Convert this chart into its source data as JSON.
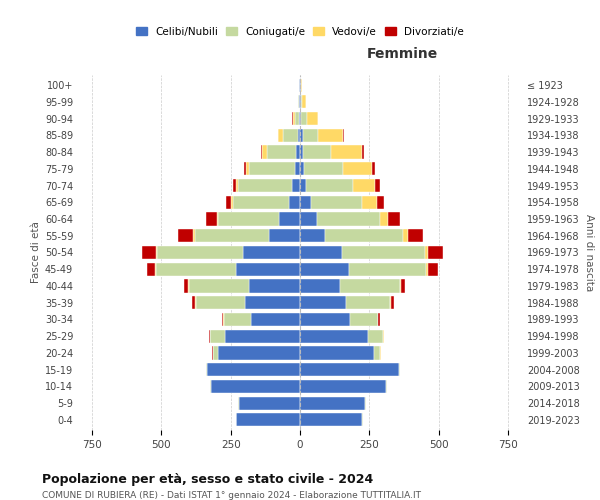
{
  "age_groups": [
    "0-4",
    "5-9",
    "10-14",
    "15-19",
    "20-24",
    "25-29",
    "30-34",
    "35-39",
    "40-44",
    "45-49",
    "50-54",
    "55-59",
    "60-64",
    "65-69",
    "70-74",
    "75-79",
    "80-84",
    "85-89",
    "90-94",
    "95-99",
    "100+"
  ],
  "birth_years": [
    "2019-2023",
    "2014-2018",
    "2009-2013",
    "2004-2008",
    "1999-2003",
    "1994-1998",
    "1989-1993",
    "1984-1988",
    "1979-1983",
    "1974-1978",
    "1969-1973",
    "1964-1968",
    "1959-1963",
    "1954-1958",
    "1949-1953",
    "1944-1948",
    "1939-1943",
    "1934-1938",
    "1929-1933",
    "1924-1928",
    "≤ 1923"
  ],
  "male": {
    "celibi": [
      230,
      220,
      320,
      335,
      295,
      270,
      175,
      200,
      185,
      230,
      205,
      110,
      75,
      38,
      28,
      18,
      14,
      8,
      4,
      2,
      2
    ],
    "coniugati": [
      2,
      2,
      3,
      5,
      18,
      55,
      100,
      175,
      215,
      290,
      310,
      270,
      220,
      205,
      195,
      165,
      105,
      55,
      15,
      4,
      2
    ],
    "vedovi": [
      0,
      0,
      0,
      0,
      2,
      1,
      1,
      2,
      2,
      3,
      5,
      4,
      5,
      5,
      8,
      10,
      18,
      15,
      8,
      3,
      1
    ],
    "divorziati": [
      0,
      0,
      0,
      0,
      2,
      3,
      5,
      12,
      15,
      30,
      50,
      55,
      40,
      20,
      12,
      8,
      4,
      2,
      1,
      0,
      0
    ]
  },
  "female": {
    "nubili": [
      225,
      235,
      310,
      355,
      265,
      245,
      180,
      165,
      145,
      175,
      150,
      90,
      62,
      38,
      22,
      16,
      10,
      10,
      5,
      3,
      2
    ],
    "coniugate": [
      2,
      2,
      3,
      5,
      25,
      55,
      100,
      160,
      215,
      280,
      300,
      280,
      225,
      185,
      170,
      140,
      100,
      55,
      20,
      5,
      2
    ],
    "vedove": [
      0,
      0,
      0,
      0,
      1,
      1,
      2,
      3,
      5,
      8,
      12,
      18,
      30,
      55,
      80,
      105,
      115,
      90,
      40,
      12,
      3
    ],
    "divorziate": [
      0,
      0,
      0,
      0,
      2,
      3,
      5,
      12,
      15,
      35,
      55,
      55,
      45,
      25,
      15,
      10,
      5,
      2,
      1,
      0,
      0
    ]
  },
  "colors": {
    "celibi": "#4472c4",
    "coniugati": "#c5d9a0",
    "vedovi": "#ffd966",
    "divorziati": "#c00000"
  },
  "legend_labels": [
    "Celibi/Nubili",
    "Coniugati/e",
    "Vedovi/e",
    "Divorziati/e"
  ],
  "title_main": "Popolazione per età, sesso e stato civile - 2024",
  "title_sub": "COMUNE DI RUBIERA (RE) - Dati ISTAT 1° gennaio 2024 - Elaborazione TUTTITALIA.IT",
  "xlabel_right": "Femmine",
  "ylabel_left": "Fasce di età",
  "ylabel_right": "Anni di nascita",
  "xlim": 800,
  "bg_color": "#ffffff",
  "grid_color": "#cccccc"
}
